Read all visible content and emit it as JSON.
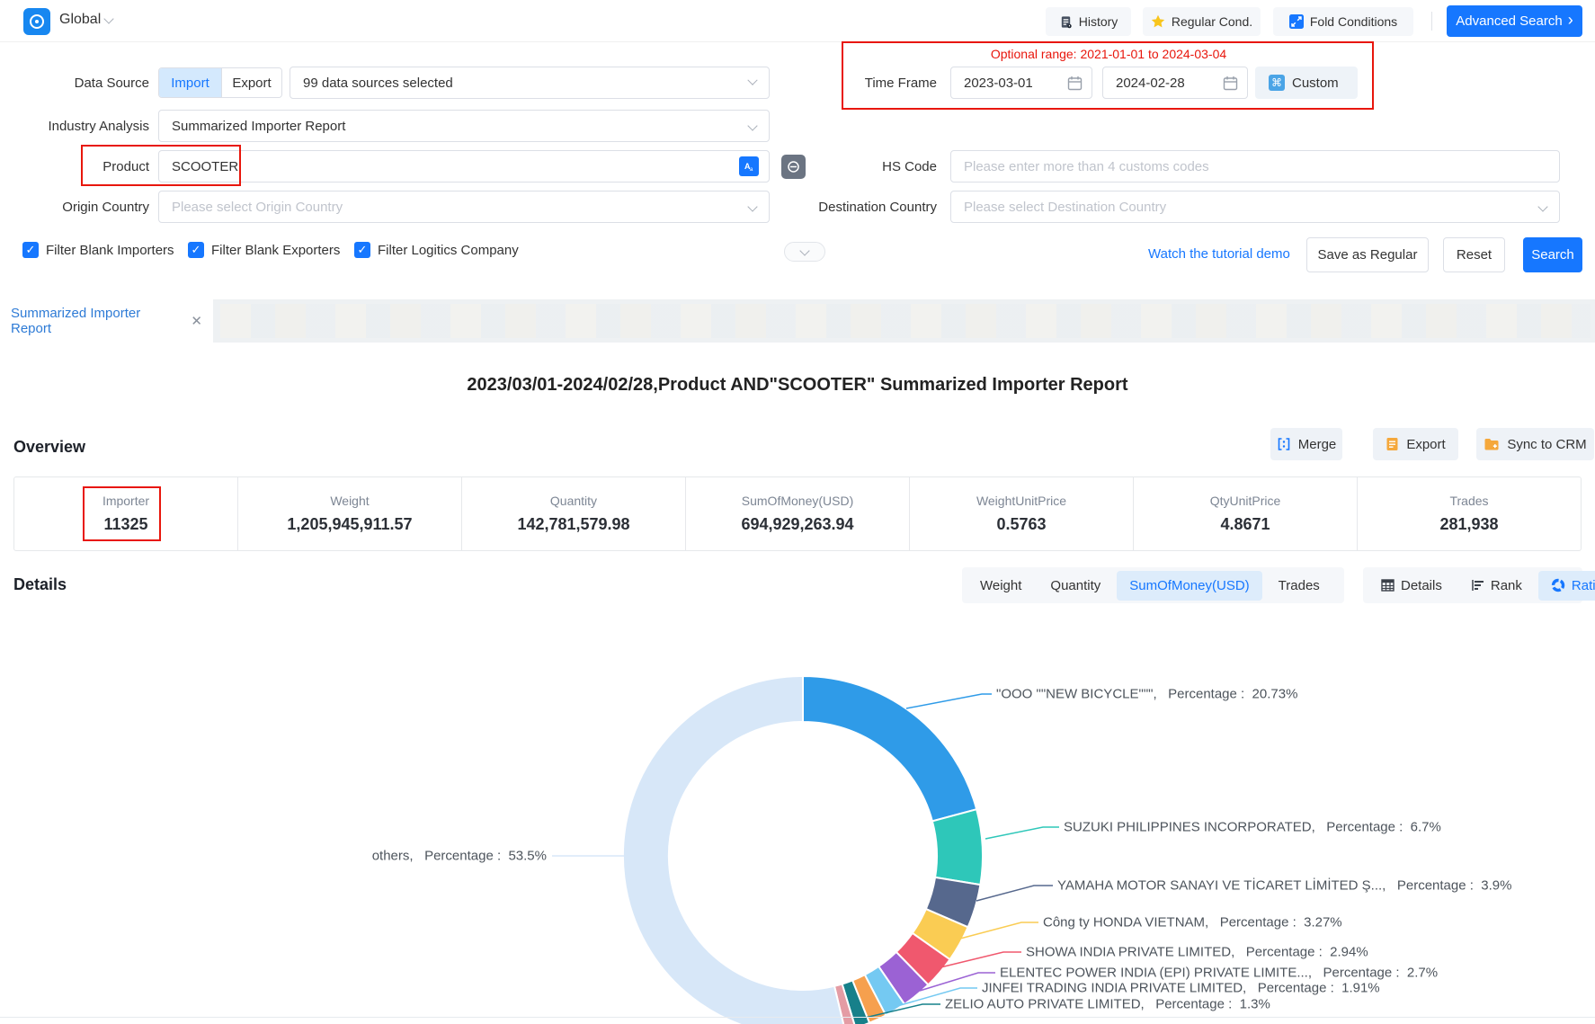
{
  "topbar": {
    "region": "Global",
    "history": "History",
    "regular": "Regular Cond.",
    "fold": "Fold Conditions",
    "advanced": "Advanced Search",
    "advanced_arrow": "›"
  },
  "form": {
    "data_source": {
      "label": "Data Source",
      "import": "Import",
      "export": "Export",
      "sources_value": "99 data sources selected"
    },
    "industry": {
      "label": "Industry Analysis",
      "value": "Summarized Importer Report"
    },
    "product": {
      "label": "Product",
      "value": "SCOOTER"
    },
    "origin": {
      "label": "Origin Country",
      "placeholder": "Please select Origin Country"
    },
    "time_frame": {
      "label": "Time Frame",
      "optional_range": "Optional range:  2021-01-01 to 2024-03-04",
      "start": "2023-03-01",
      "end": "2024-02-28",
      "custom": "Custom"
    },
    "hs_code": {
      "label": "HS Code",
      "placeholder": "Please enter more than 4 customs codes"
    },
    "destination": {
      "label": "Destination Country",
      "placeholder": "Please select Destination Country"
    },
    "checkboxes": [
      {
        "label": "Filter Blank Importers",
        "checked": true
      },
      {
        "label": "Filter Blank Exporters",
        "checked": true
      },
      {
        "label": "Filter Logitics Company",
        "checked": true
      }
    ],
    "actions": {
      "tutorial": "Watch the tutorial demo",
      "save": "Save as Regular",
      "reset": "Reset",
      "search": "Search"
    }
  },
  "tab": {
    "title": "Summarized Importer Report"
  },
  "report": {
    "title": "2023/03/01-2024/02/28,Product AND\"SCOOTER\" Summarized Importer Report"
  },
  "overview": {
    "heading": "Overview",
    "merge": "Merge",
    "export": "Export",
    "sync": "Sync to CRM",
    "stats": [
      {
        "label": "Importer",
        "value": "11325"
      },
      {
        "label": "Weight",
        "value": "1,205,945,911.57"
      },
      {
        "label": "Quantity",
        "value": "142,781,579.98"
      },
      {
        "label": "SumOfMoney(USD)",
        "value": "694,929,263.94"
      },
      {
        "label": "WeightUnitPrice",
        "value": "0.5763"
      },
      {
        "label": "QtyUnitPrice",
        "value": "4.8671"
      },
      {
        "label": "Trades",
        "value": "281,938"
      }
    ]
  },
  "details": {
    "heading": "Details",
    "metric_tabs": [
      "Weight",
      "Quantity",
      "SumOfMoney(USD)",
      "Trades"
    ],
    "metric_selected": "SumOfMoney(USD)",
    "view_tabs": [
      "Details",
      "Rank",
      "Ratio"
    ],
    "view_selected": "Ratio"
  },
  "chart_data": {
    "type": "pie",
    "subtype": "donut",
    "metric": "SumOfMoney(USD)",
    "start_angle": "top",
    "direction": "clockwise",
    "inner_radius_ratio": 0.745,
    "label_text": "Percentage",
    "slices": [
      {
        "name": "\"OOO \"\"NEW BICYCLE\"\"\"",
        "value": 20.73,
        "color": "#2F9BE8",
        "labeled": true
      },
      {
        "name": "SUZUKI PHILIPPINES INCORPORATED",
        "value": 6.7,
        "color": "#2EC7B9",
        "labeled": true
      },
      {
        "name": "YAMAHA MOTOR SANAYI VE TİCARET LİMİTED Ş...",
        "value": 3.9,
        "color": "#56688D",
        "labeled": true
      },
      {
        "name": "Công ty HONDA VIETNAM",
        "value": 3.27,
        "color": "#FACC53",
        "labeled": true
      },
      {
        "name": "SHOWA INDIA PRIVATE LIMITED",
        "value": 2.94,
        "color": "#F0586E",
        "labeled": true
      },
      {
        "name": "ELENTEC POWER INDIA (EPI) PRIVATE LIMITE...",
        "value": 2.7,
        "color": "#9B62D4",
        "labeled": true
      },
      {
        "name": "JINFEI TRADING INDIA PRIVATE LIMITED",
        "value": 1.91,
        "color": "#74C9F2",
        "labeled": true
      },
      {
        "name": "",
        "value": 1.6,
        "color": "#F6A04E",
        "labeled": false
      },
      {
        "name": "ZELIO AUTO PRIVATE LIMITED",
        "value": 1.3,
        "color": "#17808A",
        "labeled": true
      },
      {
        "name": "",
        "value": 0.95,
        "color": "#E49CA4",
        "labeled": false
      },
      {
        "name": "others",
        "value": 53.5,
        "color": "#D7E7F8",
        "labeled": true
      }
    ]
  },
  "colors": {
    "accent": "#1677ff",
    "annotation_red": "#e8160c",
    "tab_blue": "#2e7bd6",
    "star_yellow": "#f8c51c",
    "doc_orange": "#f5a83c"
  }
}
